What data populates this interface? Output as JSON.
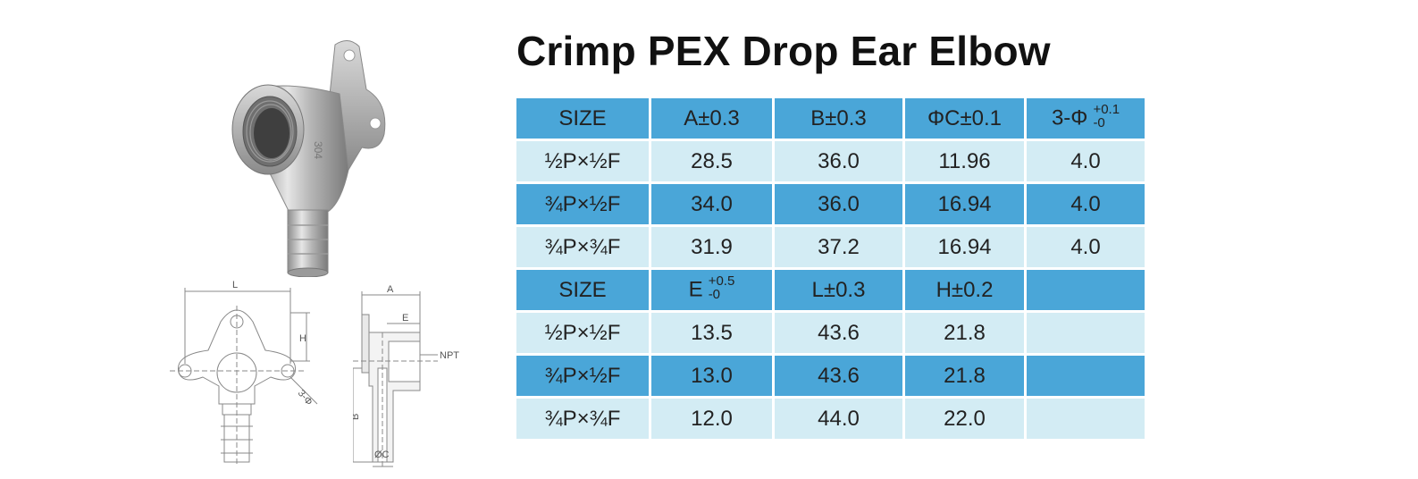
{
  "title": "Crimp PEX Drop Ear Elbow",
  "product_marking": "304",
  "table": {
    "header1": {
      "size": "SIZE",
      "a": "A±0.3",
      "b": "B±0.3",
      "c": "ΦC±0.1",
      "d_main": "3-Φ",
      "d_tol_upper": "+0.1",
      "d_tol_lower": "-0"
    },
    "rows1": [
      {
        "size": "½P×½F",
        "a": "28.5",
        "b": "36.0",
        "c": "11.96",
        "d": "4.0"
      },
      {
        "size": "¾P×½F",
        "a": "34.0",
        "b": "36.0",
        "c": "16.94",
        "d": "4.0"
      },
      {
        "size": "¾P×¾F",
        "a": "31.9",
        "b": "37.2",
        "c": "16.94",
        "d": "4.0"
      }
    ],
    "header2": {
      "size": "SIZE",
      "e_main": "E",
      "e_tol_upper": "+0.5",
      "e_tol_lower": "-0",
      "l": "L±0.3",
      "h": "H±0.2"
    },
    "rows2": [
      {
        "size": "½P×½F",
        "e": "13.5",
        "l": "43.6",
        "h": "21.8"
      },
      {
        "size": "¾P×½F",
        "e": "13.0",
        "l": "43.6",
        "h": "21.8"
      },
      {
        "size": "¾P×¾F",
        "e": "12.0",
        "l": "44.0",
        "h": "22.0"
      }
    ]
  },
  "drawing_labels": {
    "l": "L",
    "h": "H",
    "hole": "3-Φ",
    "a": "A",
    "e": "E",
    "npt": "NPT",
    "b": "B",
    "c": "ØC"
  },
  "colors": {
    "header_row": "#4aa6d8",
    "light_row": "#d3ecf4"
  }
}
